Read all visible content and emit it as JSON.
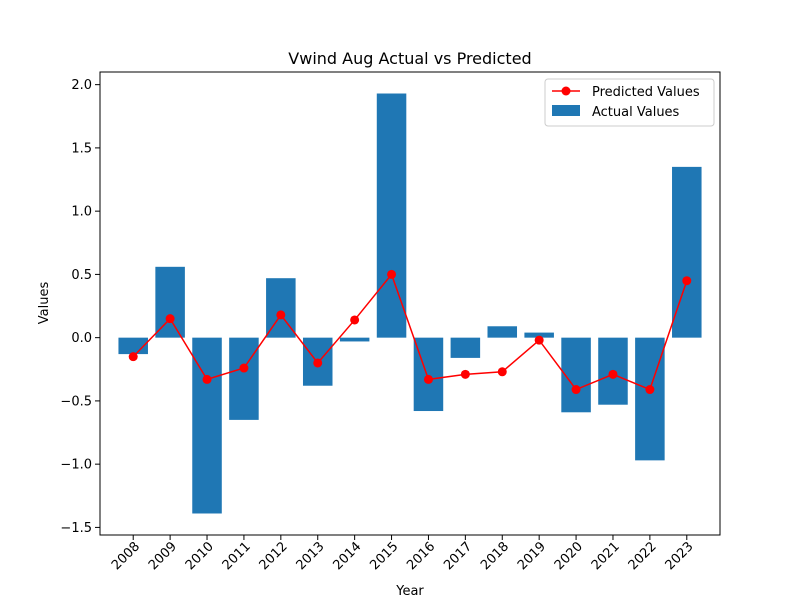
{
  "chart_data": {
    "type": "bar",
    "title": "Vwind Aug Actual vs Predicted",
    "xlabel": "Year",
    "ylabel": "Values",
    "ylim": [
      -1.56,
      2.1
    ],
    "yticks": [
      -1.5,
      -1.0,
      -0.5,
      0.0,
      0.5,
      1.0,
      1.5,
      2.0
    ],
    "ytick_labels": [
      "−1.5",
      "−1.0",
      "−0.5",
      "0.0",
      "0.5",
      "1.0",
      "1.5",
      "2.0"
    ],
    "categories": [
      "2008",
      "2009",
      "2010",
      "2011",
      "2012",
      "2013",
      "2014",
      "2015",
      "2016",
      "2017",
      "2018",
      "2019",
      "2020",
      "2021",
      "2022",
      "2023"
    ],
    "grid": false,
    "legend_position": "top-right",
    "series": [
      {
        "name": "Predicted Values",
        "kind": "line",
        "marker": "circle",
        "color": "#ff0000",
        "values": [
          -0.15,
          0.15,
          -0.33,
          -0.24,
          0.18,
          -0.2,
          0.14,
          0.5,
          -0.33,
          -0.29,
          -0.27,
          -0.02,
          -0.41,
          -0.29,
          -0.41,
          0.45
        ]
      },
      {
        "name": "Actual Values",
        "kind": "bar",
        "color": "#1f77b4",
        "values": [
          -0.13,
          0.56,
          -1.39,
          -0.65,
          0.47,
          -0.38,
          -0.03,
          1.93,
          -0.58,
          -0.16,
          0.09,
          0.04,
          -0.59,
          -0.53,
          -0.97,
          1.35
        ]
      }
    ]
  }
}
